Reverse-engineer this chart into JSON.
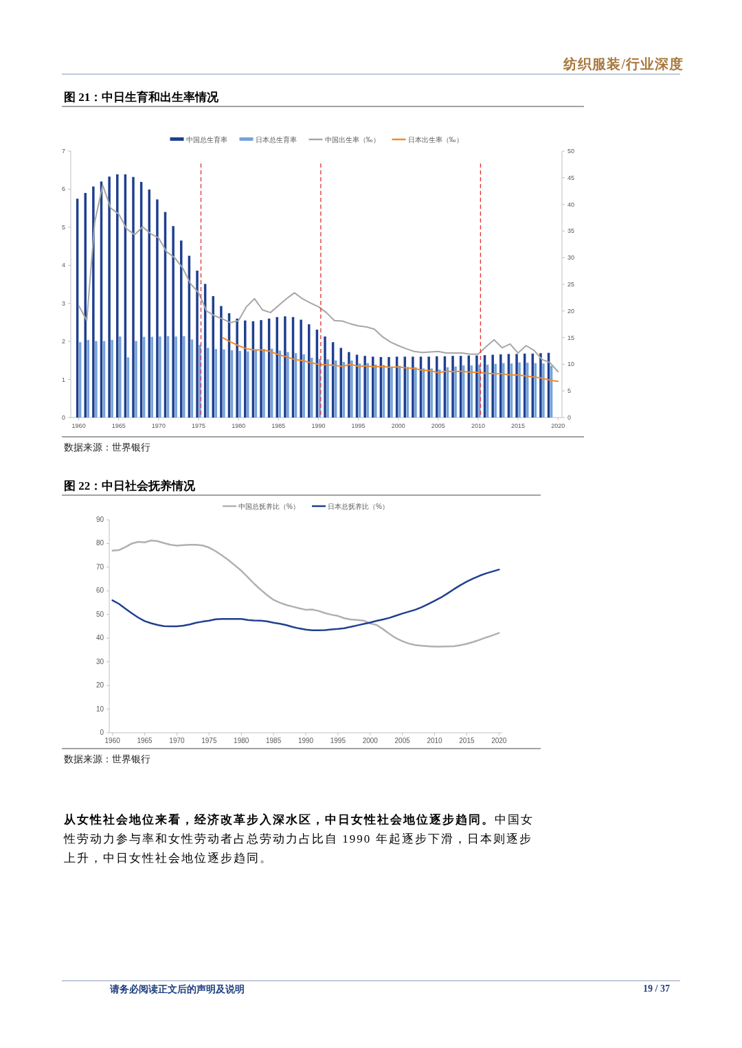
{
  "chart_data": [
    {
      "type": "bar",
      "title": "图 21：中日生育和出生率情况",
      "annotations": [
        "数据来源：世界银行"
      ],
      "x": [
        1960,
        1961,
        1962,
        1963,
        1964,
        1965,
        1966,
        1967,
        1968,
        1969,
        1970,
        1971,
        1972,
        1973,
        1974,
        1975,
        1976,
        1977,
        1978,
        1979,
        1980,
        1981,
        1982,
        1983,
        1984,
        1985,
        1986,
        1987,
        1988,
        1989,
        1990,
        1991,
        1992,
        1993,
        1994,
        1995,
        1996,
        1997,
        1998,
        1999,
        2000,
        2001,
        2002,
        2003,
        2004,
        2005,
        2006,
        2007,
        2008,
        2009,
        2010,
        2011,
        2012,
        2013,
        2014,
        2015,
        2016,
        2017,
        2018,
        2019,
        2020
      ],
      "xlim": [
        1959,
        2020.5
      ],
      "xticks": [
        1960,
        1965,
        1970,
        1975,
        1980,
        1985,
        1990,
        1995,
        2000,
        2005,
        2010,
        2015,
        2020
      ],
      "ylim": [
        0,
        7
      ],
      "yticks": [
        0,
        1,
        2,
        3,
        4,
        5,
        6,
        7
      ],
      "y2lim": [
        0,
        50
      ],
      "y2ticks": [
        0,
        5,
        10,
        15,
        20,
        25,
        30,
        35,
        40,
        45,
        50
      ],
      "grid": false,
      "legend": "top",
      "series": [
        {
          "name": "中国总生育率",
          "color": "#1f3f8f",
          "values": [
            5.75,
            5.9,
            6.07,
            6.2,
            6.33,
            6.39,
            6.39,
            6.32,
            6.19,
            5.99,
            5.73,
            5.4,
            5.03,
            4.65,
            4.25,
            3.86,
            3.51,
            3.19,
            2.93,
            2.74,
            2.6,
            2.55,
            2.53,
            2.56,
            2.6,
            2.64,
            2.66,
            2.64,
            2.57,
            2.45,
            2.31,
            2.13,
            1.98,
            1.83,
            1.72,
            1.65,
            1.62,
            1.6,
            1.59,
            1.59,
            1.6,
            1.6,
            1.6,
            1.6,
            1.6,
            1.61,
            1.61,
            1.62,
            1.62,
            1.63,
            1.63,
            1.64,
            1.65,
            1.66,
            1.67,
            1.67,
            1.68,
            1.68,
            1.69,
            1.7,
            null
          ]
        },
        {
          "name": "日本总生育率",
          "color": "#74a3dc",
          "values": [
            1.98,
            2.04,
            2.01,
            2.01,
            2.04,
            2.13,
            1.58,
            2.01,
            2.12,
            2.12,
            2.13,
            2.14,
            2.13,
            2.14,
            2.05,
            1.91,
            1.83,
            1.8,
            1.79,
            1.77,
            1.75,
            1.74,
            1.77,
            1.8,
            1.81,
            1.76,
            1.72,
            1.69,
            1.66,
            1.57,
            1.54,
            1.53,
            1.5,
            1.46,
            1.5,
            1.42,
            1.43,
            1.39,
            1.38,
            1.34,
            1.36,
            1.33,
            1.32,
            1.29,
            1.29,
            1.26,
            1.32,
            1.34,
            1.37,
            1.37,
            1.39,
            1.39,
            1.41,
            1.43,
            1.42,
            1.45,
            1.44,
            1.43,
            1.42,
            1.36,
            null
          ]
        },
        {
          "name": "中国出生率（‰）",
          "type": "line",
          "axis": "y2",
          "color": "#a6a6a6",
          "values": [
            21.0,
            18.2,
            36.7,
            43.6,
            39.3,
            38.2,
            35.4,
            34.3,
            35.8,
            34.5,
            33.7,
            31.1,
            30.0,
            28.1,
            25.1,
            23.4,
            20.0,
            19.1,
            18.5,
            17.8,
            18.2,
            20.8,
            22.3,
            20.2,
            19.7,
            21.0,
            22.3,
            23.4,
            22.3,
            21.5,
            20.8,
            19.7,
            18.2,
            18.1,
            17.6,
            17.2,
            17.0,
            16.6,
            15.2,
            14.2,
            13.5,
            12.9,
            12.4,
            12.2,
            12.3,
            12.4,
            12.1,
            12.1,
            12.1,
            11.9,
            11.9,
            13.3,
            14.6,
            13.1,
            13.8,
            12.1,
            13.5,
            12.6,
            10.9,
            10.3,
            8.6
          ]
        },
        {
          "name": "日本出生率（‰）",
          "type": "line",
          "axis": "y2",
          "color": "#f08a2c",
          "values": [
            null,
            null,
            null,
            null,
            null,
            null,
            null,
            null,
            null,
            null,
            null,
            null,
            null,
            null,
            null,
            null,
            null,
            null,
            15.0,
            14.2,
            13.5,
            12.9,
            12.7,
            12.7,
            12.4,
            11.8,
            11.4,
            10.9,
            10.7,
            10.3,
            10.0,
            9.9,
            9.8,
            9.6,
            10.0,
            9.6,
            9.7,
            9.5,
            9.6,
            9.4,
            9.5,
            9.3,
            9.2,
            8.9,
            8.8,
            8.4,
            8.7,
            8.6,
            8.7,
            8.5,
            8.5,
            8.3,
            8.2,
            8.2,
            8.0,
            8.0,
            7.8,
            7.6,
            7.4,
            7.0,
            6.8
          ]
        }
      ],
      "ref_lines": [
        {
          "axis": "x",
          "value": 1975.3,
          "color": "#e03030",
          "line_style": "dashed"
        },
        {
          "axis": "x",
          "value": 1990.3,
          "color": "#e03030",
          "line_style": "dashed"
        },
        {
          "axis": "x",
          "value": 2010.3,
          "color": "#e03030",
          "line_style": "dashed"
        }
      ]
    },
    {
      "type": "line",
      "title": "图 22：中日社会抚养情况",
      "annotations": [
        "数据来源：世界银行"
      ],
      "x": [
        1960,
        1961,
        1962,
        1963,
        1964,
        1965,
        1966,
        1967,
        1968,
        1969,
        1970,
        1971,
        1972,
        1973,
        1974,
        1975,
        1976,
        1977,
        1978,
        1979,
        1980,
        1981,
        1982,
        1983,
        1984,
        1985,
        1986,
        1987,
        1988,
        1989,
        1990,
        1991,
        1992,
        1993,
        1994,
        1995,
        1996,
        1997,
        1998,
        1999,
        2000,
        2001,
        2002,
        2003,
        2004,
        2005,
        2006,
        2007,
        2008,
        2009,
        2010,
        2011,
        2012,
        2013,
        2014,
        2015,
        2016,
        2017,
        2018,
        2019,
        2020
      ],
      "xlim": [
        1959.5,
        2020.5
      ],
      "xticks": [
        1960,
        1965,
        1970,
        1975,
        1980,
        1985,
        1990,
        1995,
        2000,
        2005,
        2010,
        2015,
        2020
      ],
      "ylim": [
        0,
        90
      ],
      "yticks": [
        0,
        10,
        20,
        30,
        40,
        50,
        60,
        70,
        80,
        90
      ],
      "grid": false,
      "legend": "top",
      "series": [
        {
          "name": "中国总抚养比（%）",
          "color": "#b0b0b0",
          "values": [
            77,
            77.2,
            78.5,
            80,
            80.7,
            80.5,
            81.3,
            81,
            80.2,
            79.5,
            79.1,
            79.3,
            79.5,
            79.5,
            79.2,
            78.3,
            76.8,
            75,
            73,
            70.8,
            68.5,
            65.8,
            63,
            60.5,
            58.2,
            56.2,
            55,
            54,
            53.3,
            52.6,
            52,
            52.1,
            51.5,
            50.6,
            49.9,
            49.4,
            48.4,
            47.9,
            47.7,
            47.4,
            46.2,
            45.6,
            43.8,
            41.8,
            40,
            38.7,
            37.7,
            37.1,
            36.8,
            36.6,
            36.4,
            36.4,
            36.5,
            36.6,
            37,
            37.6,
            38.4,
            39.3,
            40.3,
            41.2,
            42.2
          ]
        },
        {
          "name": "日本总抚养比（%）",
          "color": "#1f3f8f",
          "values": [
            56,
            54.5,
            52.5,
            50.5,
            48.7,
            47.2,
            46.3,
            45.6,
            45.1,
            45,
            45,
            45.3,
            45.8,
            46.5,
            47,
            47.4,
            48,
            48.1,
            48.1,
            48.1,
            48.1,
            47.7,
            47.5,
            47.4,
            47.1,
            46.5,
            46.1,
            45.5,
            44.7,
            44.1,
            43.6,
            43.3,
            43.3,
            43.4,
            43.7,
            43.9,
            44.2,
            44.8,
            45.4,
            46,
            46.6,
            47.3,
            47.9,
            48.6,
            49.5,
            50.4,
            51.2,
            52,
            53.1,
            54.4,
            55.8,
            57.2,
            58.9,
            60.7,
            62.4,
            63.9,
            65.2,
            66.4,
            67.4,
            68.2,
            69
          ]
        }
      ]
    },
    {
      "type": "other",
      "annotations": [
        "纺织服装/行业深度",
        "从女性社会地位来看，经济改革步入深水区，中日女性社会地位逐步趋同。",
        "中国女性劳动力参与率和女性劳动者占总劳动力占比自 1990 年起逐步下滑，日本则逐步上升，中日女性社会地位逐步趋同。",
        "请务必阅读正文后的声明及说明",
        "19 / 37"
      ]
    }
  ]
}
